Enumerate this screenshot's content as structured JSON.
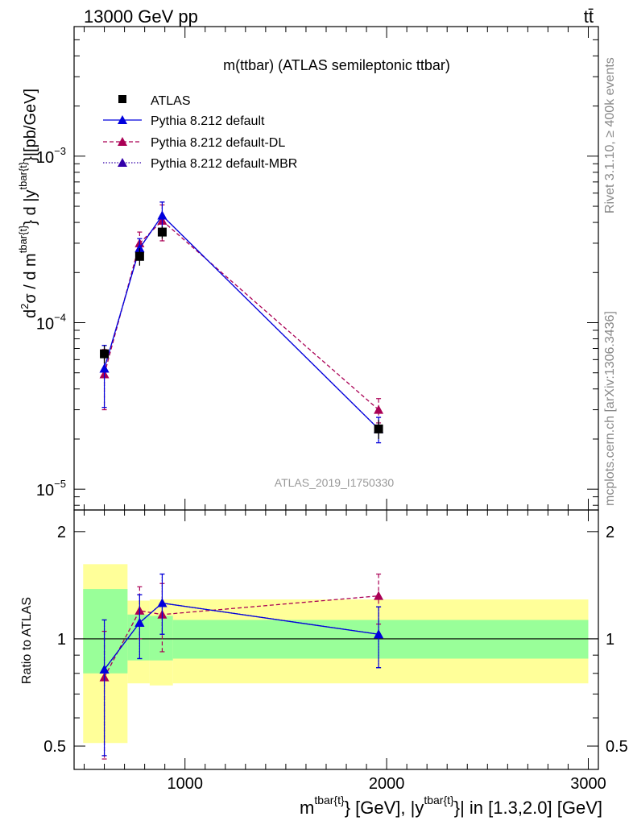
{
  "header": {
    "energy_label": "13000 GeV pp",
    "process_label": "tt̄"
  },
  "side_labels": {
    "rivet": "Rivet 3.1.10, ≥ 400k events",
    "source": "mcplots.cern.ch [arXiv:1306.3436]"
  },
  "colors": {
    "atlas": "#000000",
    "default": "#0000dd",
    "default_dl": "#aa0055",
    "default_mbr": "#3300aa",
    "band_inner": "#99ff99",
    "band_outer": "#ffff99"
  },
  "chart_data": [
    {
      "type": "scatter",
      "panel": "main",
      "title": "m(ttbar) (ATLAS semileptonic ttbar)",
      "watermark": "ATLAS_2019_I1750330",
      "y_scale": "log",
      "ylim": [
        7.5e-06,
        0.006
      ],
      "xlim": [
        450,
        3050
      ],
      "ylabel": "d²σ / d m^{tbar{t}} d |y^{tbar{t}}|[pb/GeV]",
      "ylabel_parts": {
        "a": "d",
        "a_sup": "2",
        "b": "σ /  d m",
        "b_sup": "tbar{t}",
        "c": "} d |y",
        "c_sup": "tbar{t}",
        "d": "}|[pb/GeV]"
      },
      "y_ticks": [
        {
          "value": 0.001,
          "base": "10",
          "exp": "−3"
        },
        {
          "value": 0.0001,
          "base": "10",
          "exp": "−4"
        },
        {
          "value": 1e-05,
          "base": "10",
          "exp": "−5"
        }
      ],
      "legend": [
        {
          "key": "atlas",
          "label": "ATLAS"
        },
        {
          "key": "default",
          "label": "Pythia 8.212 default"
        },
        {
          "key": "default_dl",
          "label": "Pythia 8.212 default-DL"
        },
        {
          "key": "default_mbr",
          "label": "Pythia 8.212 default-MBR"
        }
      ],
      "series": [
        {
          "key": "atlas",
          "name": "ATLAS",
          "x": [
            600,
            775,
            887,
            1960
          ],
          "y": [
            6.5e-05,
            0.00025,
            0.00035,
            2.3e-05
          ],
          "yerr": [
            8e-06,
            3e-05,
            3e-05,
            3e-06
          ]
        },
        {
          "key": "default",
          "name": "Pythia 8.212 default",
          "x": [
            600,
            775,
            887,
            1960
          ],
          "y": [
            5.3e-05,
            0.00028,
            0.00044,
            2.3e-05
          ],
          "ylo": [
            3.1e-05,
            0.00024,
            0.00036,
            1.9e-05
          ],
          "yhi": [
            7.3e-05,
            0.00032,
            0.00053,
            2.7e-05
          ]
        },
        {
          "key": "default_dl",
          "name": "Pythia 8.212 default-DL",
          "x": [
            600,
            775,
            887,
            1960
          ],
          "y": [
            4.9e-05,
            0.0003,
            0.00041,
            3e-05
          ],
          "ylo": [
            3e-05,
            0.00026,
            0.00031,
            2.5e-05
          ],
          "yhi": [
            6.9e-05,
            0.00035,
            0.00051,
            3.5e-05
          ]
        },
        {
          "key": "default_mbr",
          "name": "Pythia 8.212 default-MBR",
          "x": [
            600,
            775,
            887,
            1960
          ],
          "y": [
            5.3e-05,
            0.00028,
            0.00044,
            2.3e-05
          ],
          "ylo": [
            3.1e-05,
            0.00024,
            0.00036,
            1.9e-05
          ],
          "yhi": [
            7.3e-05,
            0.00032,
            0.00053,
            2.7e-05
          ]
        }
      ]
    },
    {
      "type": "scatter",
      "panel": "ratio",
      "ylabel": "Ratio to ATLAS",
      "y_scale": "log",
      "ylim": [
        0.43,
        2.3
      ],
      "xlim": [
        450,
        3050
      ],
      "y_ticks": [
        0.5,
        1,
        2
      ],
      "y_tick_labels": [
        "0.5",
        "1",
        "2"
      ],
      "x_ticks": [
        1000,
        2000,
        3000
      ],
      "x_tick_labels": [
        "1000",
        "2000",
        "3000"
      ],
      "xlabel": "m^{tbar{t}} [GeV], |y^{tbar{t}}| in [1.3,2.0] [GeV]",
      "xlabel_parts": {
        "a": "m",
        "a_sup": "tbar{t}",
        "b": "} [GeV], |y",
        "b_sup": "tbar{t}",
        "c": "}| in [1.3,2.0] [GeV]"
      },
      "bins": [
        {
          "x0": 495,
          "x1": 715,
          "inner": [
            0.8,
            1.38
          ],
          "outer": [
            0.51,
            1.62
          ]
        },
        {
          "x0": 715,
          "x1": 825,
          "inner": [
            0.87,
            1.17
          ],
          "outer": [
            0.75,
            1.28
          ]
        },
        {
          "x0": 825,
          "x1": 940,
          "inner": [
            0.87,
            1.16
          ],
          "outer": [
            0.74,
            1.29
          ]
        },
        {
          "x0": 940,
          "x1": 3000,
          "inner": [
            0.88,
            1.13
          ],
          "outer": [
            0.75,
            1.29
          ]
        }
      ],
      "series": [
        {
          "key": "default",
          "name": "Pythia 8.212 default",
          "x": [
            600,
            775,
            887,
            1960
          ],
          "y": [
            0.82,
            1.11,
            1.26,
            1.03
          ],
          "ylo": [
            0.47,
            0.88,
            1.03,
            0.83
          ],
          "yhi": [
            1.13,
            1.33,
            1.52,
            1.23
          ]
        },
        {
          "key": "default_dl",
          "name": "Pythia 8.212 default-DL",
          "x": [
            600,
            775,
            887,
            1960
          ],
          "y": [
            0.78,
            1.2,
            1.17,
            1.32
          ],
          "ylo": [
            0.46,
            1.0,
            0.92,
            1.1
          ],
          "yhi": [
            1.05,
            1.4,
            1.43,
            1.52
          ]
        },
        {
          "key": "default_mbr",
          "name": "Pythia 8.212 default-MBR",
          "x": [
            600,
            775,
            887,
            1960
          ],
          "y": [
            0.82,
            1.11,
            1.26,
            1.03
          ],
          "ylo": [
            0.47,
            0.88,
            1.03,
            0.83
          ],
          "yhi": [
            1.13,
            1.33,
            1.52,
            1.23
          ]
        }
      ]
    }
  ]
}
